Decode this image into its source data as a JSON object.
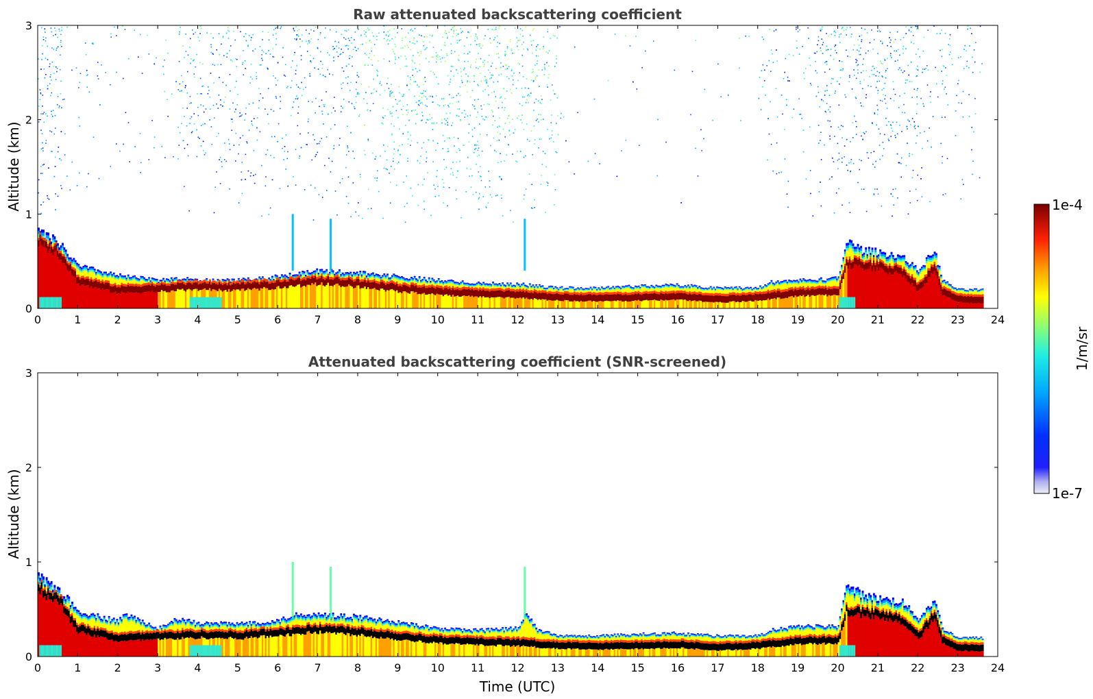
{
  "chart_data": [
    {
      "type": "heatmap",
      "title": "Raw attenuated backscattering coefficient",
      "xlabel": "",
      "ylabel": "Altitude (km)",
      "xlim": [
        0,
        24
      ],
      "ylim": [
        0,
        3
      ],
      "xticks": [
        "0",
        "1",
        "2",
        "3",
        "4",
        "5",
        "6",
        "7",
        "8",
        "9",
        "10",
        "11",
        "12",
        "13",
        "14",
        "15",
        "16",
        "17",
        "18",
        "19",
        "20",
        "21",
        "22",
        "23",
        "24"
      ],
      "yticks": [
        "0",
        "1",
        "2",
        "3"
      ],
      "data_end_time": 23.6,
      "noise": true,
      "layer_top_km": [
        [
          0,
          0.82
        ],
        [
          0.5,
          0.7
        ],
        [
          1,
          0.45
        ],
        [
          2,
          0.35
        ],
        [
          3,
          0.3
        ],
        [
          3.5,
          0.32
        ],
        [
          4,
          0.3
        ],
        [
          5,
          0.3
        ],
        [
          6,
          0.34
        ],
        [
          7,
          0.4
        ],
        [
          8,
          0.38
        ],
        [
          9,
          0.34
        ],
        [
          10,
          0.3
        ],
        [
          11,
          0.27
        ],
        [
          12,
          0.26
        ],
        [
          13,
          0.22
        ],
        [
          14,
          0.22
        ],
        [
          15,
          0.24
        ],
        [
          16,
          0.25
        ],
        [
          17,
          0.22
        ],
        [
          18,
          0.22
        ],
        [
          18.3,
          0.28
        ],
        [
          19,
          0.3
        ],
        [
          20,
          0.32
        ],
        [
          20.2,
          0.72
        ],
        [
          20.6,
          0.62
        ],
        [
          21,
          0.6
        ],
        [
          21.6,
          0.55
        ],
        [
          22,
          0.4
        ],
        [
          22.4,
          0.62
        ],
        [
          22.6,
          0.3
        ],
        [
          23,
          0.2
        ],
        [
          23.6,
          0.2
        ]
      ],
      "layer_core_km": [
        [
          0,
          0.75
        ],
        [
          0.5,
          0.62
        ],
        [
          1,
          0.3
        ],
        [
          2,
          0.2
        ],
        [
          3,
          0.22
        ],
        [
          4,
          0.24
        ],
        [
          5,
          0.23
        ],
        [
          6,
          0.26
        ],
        [
          7,
          0.3
        ],
        [
          8,
          0.27
        ],
        [
          9,
          0.22
        ],
        [
          10,
          0.18
        ],
        [
          11,
          0.16
        ],
        [
          12,
          0.15
        ],
        [
          13,
          0.12
        ],
        [
          14,
          0.11
        ],
        [
          15,
          0.12
        ],
        [
          16,
          0.13
        ],
        [
          17,
          0.1
        ],
        [
          18,
          0.12
        ],
        [
          19,
          0.17
        ],
        [
          20,
          0.18
        ],
        [
          20.2,
          0.5
        ],
        [
          21,
          0.45
        ],
        [
          21.6,
          0.4
        ],
        [
          22,
          0.22
        ],
        [
          22.4,
          0.45
        ],
        [
          22.6,
          0.18
        ],
        [
          23,
          0.1
        ],
        [
          23.6,
          0.09
        ]
      ]
    },
    {
      "type": "heatmap",
      "title": "Attenuated backscattering coefficient (SNR-screened)",
      "xlabel": "Time (UTC)",
      "ylabel": "Altitude (km)",
      "xlim": [
        0,
        24
      ],
      "ylim": [
        0,
        3
      ],
      "xticks": [
        "0",
        "1",
        "2",
        "3",
        "4",
        "5",
        "6",
        "7",
        "8",
        "9",
        "10",
        "11",
        "12",
        "13",
        "14",
        "15",
        "16",
        "17",
        "18",
        "19",
        "20",
        "21",
        "22",
        "23",
        "24"
      ],
      "yticks": [
        "0",
        "1",
        "2",
        "3"
      ],
      "data_end_time": 23.6,
      "noise": false,
      "core_color": "#000000",
      "layer_top_km": [
        [
          0,
          0.84
        ],
        [
          0.5,
          0.72
        ],
        [
          1,
          0.48
        ],
        [
          2,
          0.38
        ],
        [
          2.2,
          0.45
        ],
        [
          3,
          0.3
        ],
        [
          3.5,
          0.4
        ],
        [
          4,
          0.35
        ],
        [
          5,
          0.35
        ],
        [
          6,
          0.38
        ],
        [
          6.5,
          0.45
        ],
        [
          7,
          0.45
        ],
        [
          8,
          0.42
        ],
        [
          9,
          0.36
        ],
        [
          10,
          0.3
        ],
        [
          11,
          0.28
        ],
        [
          12,
          0.3
        ],
        [
          12.2,
          0.45
        ],
        [
          12.5,
          0.28
        ],
        [
          13,
          0.22
        ],
        [
          14,
          0.22
        ],
        [
          15,
          0.24
        ],
        [
          16,
          0.25
        ],
        [
          17,
          0.22
        ],
        [
          18,
          0.22
        ],
        [
          18.3,
          0.28
        ],
        [
          19,
          0.32
        ],
        [
          20,
          0.32
        ],
        [
          20.2,
          0.76
        ],
        [
          20.6,
          0.66
        ],
        [
          21,
          0.62
        ],
        [
          21.6,
          0.58
        ],
        [
          22,
          0.4
        ],
        [
          22.4,
          0.6
        ],
        [
          22.6,
          0.3
        ],
        [
          23,
          0.2
        ],
        [
          23.6,
          0.2
        ]
      ],
      "layer_core_km": [
        [
          0,
          0.75
        ],
        [
          0.5,
          0.62
        ],
        [
          1,
          0.3
        ],
        [
          2,
          0.2
        ],
        [
          3,
          0.22
        ],
        [
          4,
          0.24
        ],
        [
          5,
          0.23
        ],
        [
          6,
          0.26
        ],
        [
          7,
          0.3
        ],
        [
          8,
          0.27
        ],
        [
          9,
          0.22
        ],
        [
          10,
          0.18
        ],
        [
          11,
          0.16
        ],
        [
          12,
          0.15
        ],
        [
          13,
          0.12
        ],
        [
          14,
          0.11
        ],
        [
          15,
          0.12
        ],
        [
          16,
          0.13
        ],
        [
          17,
          0.1
        ],
        [
          18,
          0.12
        ],
        [
          19,
          0.17
        ],
        [
          20,
          0.18
        ],
        [
          20.2,
          0.5
        ],
        [
          21,
          0.45
        ],
        [
          21.6,
          0.4
        ],
        [
          22,
          0.22
        ],
        [
          22.4,
          0.45
        ],
        [
          22.6,
          0.18
        ],
        [
          23,
          0.1
        ],
        [
          23.6,
          0.09
        ]
      ]
    }
  ],
  "colorbar": {
    "label": "1/m/sr",
    "max_label": "1e-4",
    "min_label": "1e-7",
    "scale": "log",
    "colormap": "jet",
    "colors": [
      "#e6e6f5",
      "#c8c8f0",
      "#a0a0f0",
      "#7070f0",
      "#0000ff",
      "#0050ff",
      "#00a0ff",
      "#00e0ff",
      "#40ffc0",
      "#a0ff60",
      "#ffff00",
      "#ffa000",
      "#ff4000",
      "#e00000",
      "#800000"
    ]
  }
}
